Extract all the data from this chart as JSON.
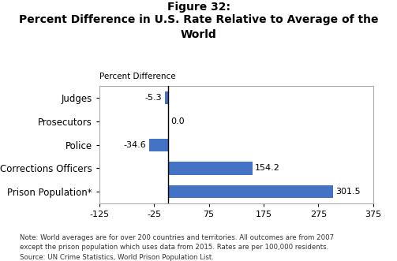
{
  "title_line1": "Figure 32:",
  "title_line2": "Percent Difference in U.S. Rate Relative to Average of the\nWorld",
  "categories": [
    "Prison Population*",
    "Corrections Officers",
    "Police",
    "Prosecutors",
    "Judges"
  ],
  "values": [
    301.5,
    154.2,
    -34.6,
    0.0,
    -5.3
  ],
  "bar_color": "#4472C4",
  "xlabel_top": "Percent Difference",
  "xlim": [
    -125,
    375
  ],
  "xticks": [
    -125,
    -25,
    75,
    175,
    275,
    375
  ],
  "xtick_labels": [
    "-125",
    "-25",
    "75",
    "175",
    "275",
    "375"
  ],
  "note": "Note: World averages are for over 200 countries and territories. All outcomes are from 2007\nexcept the prison population which uses data from 2015. Rates are per 100,000 residents.\nSource: UN Crime Statistics, World Prison Population List.",
  "value_labels": [
    "301.5",
    "154.2",
    "-34.6",
    "0.0",
    "-5.3"
  ],
  "figsize": [
    5.03,
    3.31
  ],
  "dpi": 100,
  "background_color": "#ffffff"
}
